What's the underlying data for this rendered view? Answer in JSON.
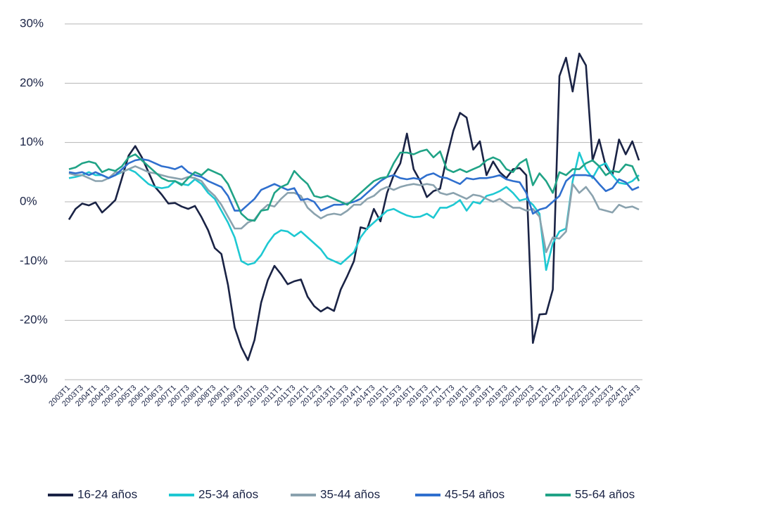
{
  "chart_data": {
    "type": "line",
    "categories": [
      "2003T1",
      null,
      "2003T3",
      null,
      "2004T1",
      null,
      "2004T3",
      null,
      "2005T1",
      null,
      "2005T3",
      null,
      "2006T1",
      null,
      "2006T3",
      null,
      "2007T1",
      null,
      "2007T3",
      null,
      "2008T1",
      null,
      "2008T3",
      null,
      "2009T1",
      null,
      "2009T3",
      null,
      "2010T1",
      null,
      "2010T3",
      null,
      "2011T1",
      null,
      "2011T3",
      null,
      "2012T1",
      null,
      "2012T3",
      null,
      "2013T1",
      null,
      "2013T3",
      null,
      "2014T1",
      null,
      "2014T3",
      null,
      "2015T1",
      null,
      "2015T3",
      null,
      "2016T1",
      null,
      "2016T3",
      null,
      "2017T1",
      null,
      "2017T3",
      null,
      "2018T1",
      null,
      "2018T3",
      null,
      "2019T1",
      null,
      "2019T3",
      null,
      "2020T1",
      null,
      "2020T3",
      null,
      "2021T1",
      null,
      "2021T3",
      null,
      "2022T1",
      null,
      "2022T3",
      null,
      "2023T1",
      null,
      "2023T3",
      null,
      "2024T1",
      null,
      "2024T3"
    ],
    "series": [
      {
        "name": "16-24 años",
        "color": "#1a2345",
        "values": [
          -3,
          -1.2,
          -0.3,
          -0.6,
          -0.1,
          -1.8,
          -0.8,
          0.3,
          4,
          7.8,
          9.4,
          7.5,
          5,
          2.5,
          1.2,
          -0.3,
          -0.2,
          -0.8,
          -1.2,
          -0.7,
          -2.6,
          -4.8,
          -7.8,
          -8.8,
          -14,
          -21.2,
          -24.5,
          -26.7,
          -23.3,
          -17,
          -13.2,
          -10.8,
          -12.2,
          -13.9,
          -13.4,
          -13.1,
          -16,
          -17.6,
          -18.5,
          -17.8,
          -18.4,
          -14.8,
          -12.5,
          -10,
          -4.3,
          -4.6,
          -1.2,
          -3.3,
          1.5,
          4.5,
          6.5,
          11.5,
          5.5,
          3.5,
          0.8,
          1.8,
          2.2,
          7.5,
          12,
          15,
          14.2,
          8.8,
          10.2,
          4.5,
          6.8,
          5,
          4,
          5.5,
          5.7,
          4.5,
          -23.8,
          -19,
          -18.9,
          -14.8,
          21.2,
          24.3,
          18.6,
          25,
          23,
          7,
          10.5,
          6,
          4.5,
          10.5,
          8,
          10.2,
          7
        ]
      },
      {
        "name": "25-34 años",
        "color": "#1ec8d2",
        "values": [
          4,
          4.2,
          4.5,
          5,
          4.5,
          4.5,
          4,
          4.5,
          5,
          5.5,
          5,
          4,
          3,
          2.5,
          2.3,
          2.5,
          3.5,
          3,
          2.8,
          3.8,
          3,
          1.5,
          0.5,
          -1.5,
          -3.5,
          -6,
          -10,
          -10.6,
          -10.3,
          -9,
          -7,
          -5.5,
          -4.8,
          -5,
          -5.8,
          -5,
          -6,
          -7,
          -8,
          -9.5,
          -10,
          -10.5,
          -9.5,
          -8.5,
          -6,
          -4.5,
          -3.5,
          -2.5,
          -1.5,
          -1.2,
          -1.8,
          -2.3,
          -2.6,
          -2.5,
          -2,
          -2.7,
          -1,
          -1,
          -0.5,
          0.3,
          -1.5,
          0,
          -0.3,
          1,
          1.3,
          1.8,
          2.5,
          1.5,
          0.2,
          0.5,
          -0.5,
          -2,
          -11.5,
          -7,
          -5,
          -4.5,
          3.5,
          8.3,
          5.5,
          4,
          6,
          6.5,
          4.5,
          3.2,
          3,
          3.5,
          4.5
        ]
      },
      {
        "name": "35-44 años",
        "color": "#8aa2ae",
        "values": [
          4.8,
          4.5,
          4.5,
          4,
          3.5,
          3.5,
          4,
          5,
          5,
          5.5,
          6,
          5.5,
          5,
          4.8,
          4.5,
          4.2,
          4,
          3.8,
          4.2,
          4,
          3.5,
          2,
          1,
          -0.5,
          -2.5,
          -4.5,
          -4.5,
          -3.5,
          -3,
          -1.5,
          -0.5,
          -0.8,
          0.5,
          1.5,
          1.5,
          1,
          -1,
          -2,
          -2.8,
          -2.2,
          -2,
          -2.2,
          -1.5,
          -0.5,
          -0.5,
          0.5,
          1,
          2,
          2.5,
          2,
          2.5,
          2.8,
          3,
          2.8,
          3,
          2.8,
          1.5,
          1.2,
          1.5,
          1,
          0.5,
          1.2,
          1,
          0.5,
          0,
          0.5,
          -0.3,
          -1,
          -1,
          -1.5,
          -1.2,
          -2.5,
          -8.5,
          -6,
          -6.2,
          -5,
          3,
          1.5,
          2.5,
          1,
          -1.2,
          -1.5,
          -1.8,
          -0.5,
          -1,
          -0.8,
          -1.3
        ]
      },
      {
        "name": "45-54 años",
        "color": "#2f6fce",
        "values": [
          5,
          4.8,
          5,
          4.5,
          5,
          4.5,
          4,
          4.5,
          5.5,
          6.5,
          7,
          7.2,
          7,
          6.5,
          6,
          5.8,
          5.5,
          6,
          5,
          4.5,
          4.2,
          3.5,
          3,
          2.5,
          1,
          -1.5,
          -1.5,
          -0.5,
          0.5,
          2,
          2.5,
          3,
          2.5,
          2,
          2.3,
          0.3,
          0.5,
          0,
          -1.5,
          -1,
          -0.5,
          -0.5,
          -0.3,
          0,
          0.5,
          1.5,
          2.5,
          3.5,
          4.2,
          4.5,
          4,
          3.8,
          4,
          3.8,
          4.5,
          4.8,
          4.2,
          4,
          3.5,
          3,
          4,
          3.8,
          4,
          4,
          4.2,
          4.5,
          3.8,
          3.5,
          3.3,
          1.5,
          -2,
          -1.3,
          -1,
          0,
          1,
          3.5,
          4.5,
          4.5,
          4.5,
          4.3,
          3,
          1.8,
          2.3,
          3.8,
          3.3,
          2,
          2.5
        ]
      },
      {
        "name": "55-64 años",
        "color": "#20a386",
        "values": [
          5.5,
          5.8,
          6.5,
          6.8,
          6.5,
          5,
          5.5,
          5.2,
          6,
          7.5,
          8,
          7,
          6,
          5,
          4,
          3.5,
          3.5,
          2.8,
          4,
          5,
          4.5,
          5.5,
          5,
          4.5,
          3,
          0.5,
          -2,
          -3,
          -3.2,
          -1.5,
          -1.3,
          1.5,
          2.5,
          3,
          5.2,
          4,
          3,
          1,
          0.7,
          1,
          0.5,
          0,
          -0.5,
          0.5,
          1.5,
          2.5,
          3.5,
          4,
          4.2,
          6.5,
          8.3,
          8.3,
          8,
          8.5,
          8.8,
          7.5,
          8.5,
          5.5,
          5,
          5.5,
          5,
          5.5,
          6,
          7,
          7.5,
          7,
          5.5,
          5,
          6.5,
          7.2,
          2.8,
          4.8,
          3.5,
          1.5,
          5,
          4.5,
          5.5,
          5.5,
          6.5,
          7,
          6,
          4.5,
          5.2,
          5,
          6.3,
          6,
          3.5
        ]
      }
    ],
    "ylim": [
      -30,
      30
    ],
    "yticks": [
      {
        "value": -30,
        "label": "-30%"
      },
      {
        "value": -20,
        "label": "-20%"
      },
      {
        "value": -10,
        "label": "-10%"
      },
      {
        "value": 0,
        "label": "0%"
      },
      {
        "value": 10,
        "label": "10%"
      },
      {
        "value": 20,
        "label": "20%"
      },
      {
        "value": 30,
        "label": "30%"
      }
    ],
    "grid": true,
    "legend": "bottom"
  }
}
